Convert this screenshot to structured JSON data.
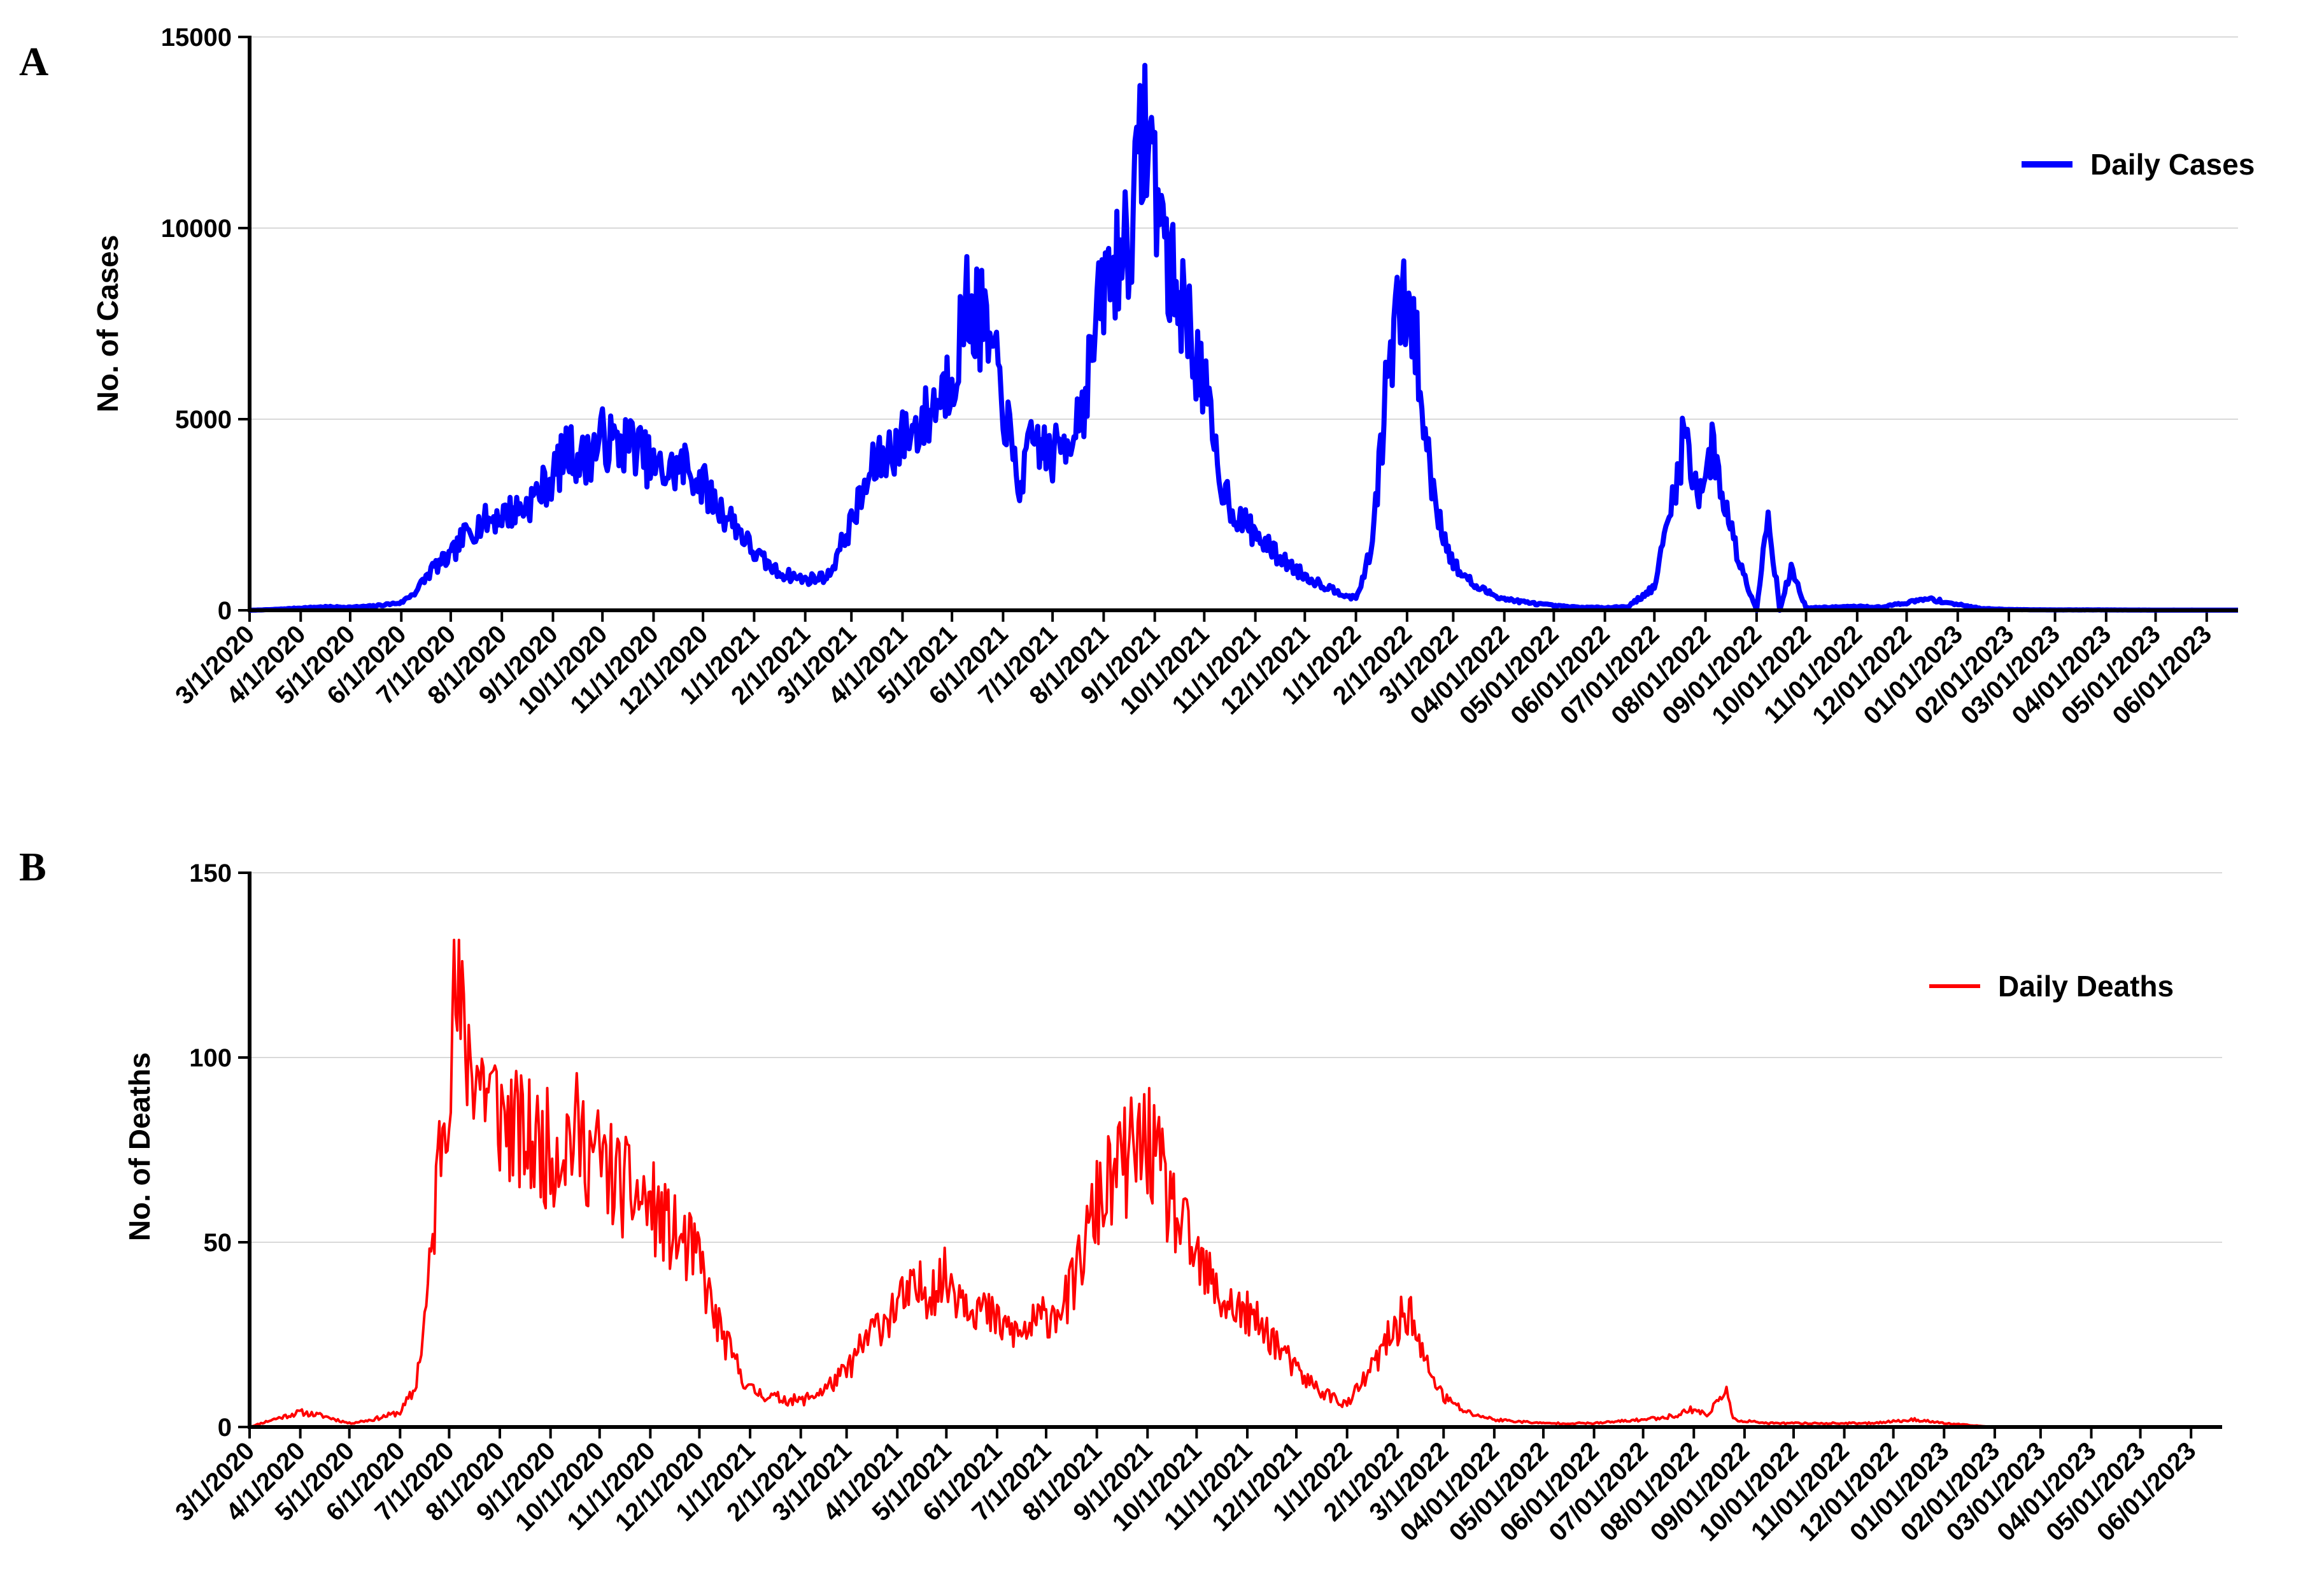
{
  "chart_data": [
    {
      "panel": "A",
      "type": "line",
      "xlabel": "",
      "ylabel": "No. of Cases",
      "ylim": [
        0,
        15000
      ],
      "yticks": [
        "0",
        "5000",
        "10000",
        "15000"
      ],
      "grid": "horizontal",
      "legend_position": "top-right",
      "x_tick_labels": [
        "3/1/2020",
        "4/1/2020",
        "5/1/2020",
        "6/1/2020",
        "7/1/2020",
        "8/1/2020",
        "9/1/2020",
        "10/1/2020",
        "11/1/2020",
        "12/1/2020",
        "1/1/2021",
        "2/1/2021",
        "3/1/2021",
        "4/1/2021",
        "5/1/2021",
        "6/1/2021",
        "7/1/2021",
        "8/1/2021",
        "9/1/2021",
        "10/1/2021",
        "11/1/2021",
        "12/1/2021",
        "1/1/2022",
        "2/1/2022",
        "3/1/2022",
        "04/01/2022",
        "05/01/2022",
        "06/01/2022",
        "07/01/2022",
        "08/01/2022",
        "09/01/2022",
        "10/01/2022",
        "11/01/2022",
        "12/01/2022",
        "01/01/2023",
        "02/01/2023",
        "03/01/2023",
        "04/01/2023",
        "05/01/2023",
        "06/01/2023"
      ],
      "x_range": [
        "2020-03-01",
        "2023-06-20"
      ],
      "series": [
        {
          "name": "Daily  Cases",
          "color": "#0000ff",
          "points": [
            [
              "2020-03-01",
              0
            ],
            [
              "2020-03-15",
              20
            ],
            [
              "2020-04-01",
              60
            ],
            [
              "2020-04-15",
              90
            ],
            [
              "2020-05-01",
              80
            ],
            [
              "2020-05-15",
              110
            ],
            [
              "2020-06-01",
              200
            ],
            [
              "2020-06-10",
              500
            ],
            [
              "2020-06-20",
              1100
            ],
            [
              "2020-07-01",
              1400
            ],
            [
              "2020-07-10",
              2000
            ],
            [
              "2020-07-20",
              2300
            ],
            [
              "2020-08-01",
              2500
            ],
            [
              "2020-08-15",
              2700
            ],
            [
              "2020-09-01",
              3500
            ],
            [
              "2020-09-10",
              4200
            ],
            [
              "2020-09-20",
              3900
            ],
            [
              "2020-10-01",
              4500
            ],
            [
              "2020-10-10",
              4300
            ],
            [
              "2020-10-20",
              4400
            ],
            [
              "2020-11-01",
              3700
            ],
            [
              "2020-11-10",
              3600
            ],
            [
              "2020-11-20",
              3800
            ],
            [
              "2020-12-01",
              3300
            ],
            [
              "2020-12-10",
              2700
            ],
            [
              "2020-12-20",
              2300
            ],
            [
              "2021-01-01",
              1500
            ],
            [
              "2021-01-15",
              1000
            ],
            [
              "2021-02-01",
              800
            ],
            [
              "2021-02-15",
              900
            ],
            [
              "2021-03-01",
              2300
            ],
            [
              "2021-03-15",
              3800
            ],
            [
              "2021-04-01",
              4500
            ],
            [
              "2021-04-15",
              5000
            ],
            [
              "2021-05-01",
              6200
            ],
            [
              "2021-05-10",
              8000
            ],
            [
              "2021-05-20",
              7500
            ],
            [
              "2021-06-01",
              5500
            ],
            [
              "2021-06-10",
              3200
            ],
            [
              "2021-06-20",
              4500
            ],
            [
              "2021-07-01",
              4000
            ],
            [
              "2021-07-10",
              4500
            ],
            [
              "2021-07-20",
              5500
            ],
            [
              "2021-08-01",
              8500
            ],
            [
              "2021-08-10",
              9200
            ],
            [
              "2021-08-20",
              10500
            ],
            [
              "2021-08-25",
              12800
            ],
            [
              "2021-09-01",
              11500
            ],
            [
              "2021-09-10",
              8800
            ],
            [
              "2021-09-20",
              7800
            ],
            [
              "2021-10-01",
              5800
            ],
            [
              "2021-10-10",
              3500
            ],
            [
              "2021-10-20",
              2500
            ],
            [
              "2021-11-01",
              2000
            ],
            [
              "2021-11-15",
              1400
            ],
            [
              "2021-12-01",
              900
            ],
            [
              "2021-12-15",
              600
            ],
            [
              "2022-01-01",
              300
            ],
            [
              "2022-01-10",
              1500
            ],
            [
              "2022-01-20",
              6000
            ],
            [
              "2022-01-27",
              8000
            ],
            [
              "2022-02-05",
              7500
            ],
            [
              "2022-02-12",
              4500
            ],
            [
              "2022-02-20",
              2500
            ],
            [
              "2022-03-01",
              1200
            ],
            [
              "2022-03-15",
              600
            ],
            [
              "2022-04-01",
              300
            ],
            [
              "2022-04-15",
              200
            ],
            [
              "2022-05-01",
              120
            ],
            [
              "2022-05-15",
              80
            ],
            [
              "2022-06-01",
              70
            ],
            [
              "2022-06-15",
              100
            ],
            [
              "2022-07-01",
              600
            ],
            [
              "2022-07-10",
              2500
            ],
            [
              "2022-07-20",
              4700
            ],
            [
              "2022-07-27",
              3000
            ],
            [
              "2022-08-05",
              4200
            ],
            [
              "2022-08-12",
              3000
            ],
            [
              "2022-08-20",
              1500
            ],
            [
              "2022-09-01",
              0
            ],
            [
              "2022-09-08",
              2600
            ],
            [
              "2022-09-15",
              0
            ],
            [
              "2022-09-22",
              1100
            ],
            [
              "2022-10-01",
              60
            ],
            [
              "2022-10-15",
              80
            ],
            [
              "2022-11-01",
              100
            ],
            [
              "2022-11-15",
              80
            ],
            [
              "2022-12-01",
              200
            ],
            [
              "2022-12-15",
              300
            ],
            [
              "2023-01-01",
              150
            ],
            [
              "2023-01-15",
              50
            ],
            [
              "2023-02-01",
              20
            ],
            [
              "2023-03-01",
              10
            ],
            [
              "2023-04-01",
              10
            ],
            [
              "2023-05-01",
              5
            ],
            [
              "2023-06-01",
              5
            ],
            [
              "2023-06-20",
              5
            ]
          ]
        }
      ]
    },
    {
      "panel": "B",
      "type": "line",
      "xlabel": "",
      "ylabel": "No. of Deaths",
      "ylim": [
        0,
        150
      ],
      "yticks": [
        "0",
        "50",
        "100",
        "150"
      ],
      "grid": "horizontal",
      "legend_position": "top-right",
      "x_tick_labels": [
        "3/1/2020",
        "4/1/2020",
        "5/1/2020",
        "6/1/2020",
        "7/1/2020",
        "8/1/2020",
        "9/1/2020",
        "10/1/2020",
        "11/1/2020",
        "12/1/2020",
        "1/1/2021",
        "2/1/2021",
        "3/1/2021",
        "4/1/2021",
        "5/1/2021",
        "6/1/2021",
        "7/1/2021",
        "8/1/2021",
        "9/1/2021",
        "10/1/2021",
        "11/1/2021",
        "12/1/2021",
        "1/1/2022",
        "2/1/2022",
        "3/1/2022",
        "04/01/2022",
        "05/01/2022",
        "06/01/2022",
        "07/01/2022",
        "08/01/2022",
        "09/01/2022",
        "10/01/2022",
        "11/01/2022",
        "12/01/2022",
        "01/01/2023",
        "02/01/2023",
        "03/01/2023",
        "04/01/2023",
        "05/01/2023",
        "06/01/2023"
      ],
      "x_range": [
        "2020-03-01",
        "2023-06-20"
      ],
      "series": [
        {
          "name": "Daily Deaths",
          "color": "#ff0000",
          "points": [
            [
              "2020-03-01",
              0
            ],
            [
              "2020-03-15",
              2
            ],
            [
              "2020-04-01",
              4
            ],
            [
              "2020-04-15",
              3
            ],
            [
              "2020-05-01",
              1
            ],
            [
              "2020-05-15",
              2
            ],
            [
              "2020-06-01",
              4
            ],
            [
              "2020-06-10",
              10
            ],
            [
              "2020-06-15",
              25
            ],
            [
              "2020-06-20",
              45
            ],
            [
              "2020-06-25",
              75
            ],
            [
              "2020-07-01",
              100
            ],
            [
              "2020-07-05",
              115
            ],
            [
              "2020-07-10",
              105
            ],
            [
              "2020-07-20",
              95
            ],
            [
              "2020-08-01",
              85
            ],
            [
              "2020-08-15",
              78
            ],
            [
              "2020-09-01",
              75
            ],
            [
              "2020-09-15",
              80
            ],
            [
              "2020-10-01",
              72
            ],
            [
              "2020-10-15",
              65
            ],
            [
              "2020-11-01",
              60
            ],
            [
              "2020-11-15",
              52
            ],
            [
              "2020-12-01",
              45
            ],
            [
              "2020-12-10",
              30
            ],
            [
              "2020-12-20",
              20
            ],
            [
              "2021-01-01",
              10
            ],
            [
              "2021-01-15",
              8
            ],
            [
              "2021-02-01",
              7
            ],
            [
              "2021-02-15",
              10
            ],
            [
              "2021-03-01",
              15
            ],
            [
              "2021-03-15",
              25
            ],
            [
              "2021-04-01",
              33
            ],
            [
              "2021-04-15",
              37
            ],
            [
              "2021-05-01",
              40
            ],
            [
              "2021-05-15",
              35
            ],
            [
              "2021-06-01",
              28
            ],
            [
              "2021-06-15",
              25
            ],
            [
              "2021-07-01",
              30
            ],
            [
              "2021-07-15",
              35
            ],
            [
              "2021-08-01",
              60
            ],
            [
              "2021-08-15",
              70
            ],
            [
              "2021-09-01",
              78
            ],
            [
              "2021-09-15",
              60
            ],
            [
              "2021-10-01",
              45
            ],
            [
              "2021-10-15",
              35
            ],
            [
              "2021-11-01",
              30
            ],
            [
              "2021-11-15",
              25
            ],
            [
              "2021-12-01",
              15
            ],
            [
              "2021-12-15",
              10
            ],
            [
              "2022-01-01",
              6
            ],
            [
              "2022-01-15",
              15
            ],
            [
              "2022-02-01",
              28
            ],
            [
              "2022-02-08",
              32
            ],
            [
              "2022-02-15",
              20
            ],
            [
              "2022-03-01",
              8
            ],
            [
              "2022-03-15",
              4
            ],
            [
              "2022-04-01",
              2
            ],
            [
              "2022-05-01",
              1
            ],
            [
              "2022-06-01",
              1
            ],
            [
              "2022-07-01",
              2
            ],
            [
              "2022-07-20",
              3
            ],
            [
              "2022-08-01",
              5
            ],
            [
              "2022-08-10",
              3
            ],
            [
              "2022-08-20",
              11
            ],
            [
              "2022-08-25",
              2
            ],
            [
              "2022-09-15",
              1
            ],
            [
              "2022-10-15",
              1
            ],
            [
              "2022-11-15",
              1
            ],
            [
              "2022-12-15",
              2
            ],
            [
              "2023-01-01",
              1
            ],
            [
              "2023-02-01",
              0
            ],
            [
              "2023-03-01",
              0
            ],
            [
              "2023-04-01",
              0
            ],
            [
              "2023-05-01",
              0
            ],
            [
              "2023-06-01",
              0
            ],
            [
              "2023-06-20",
              0
            ]
          ]
        }
      ]
    }
  ]
}
